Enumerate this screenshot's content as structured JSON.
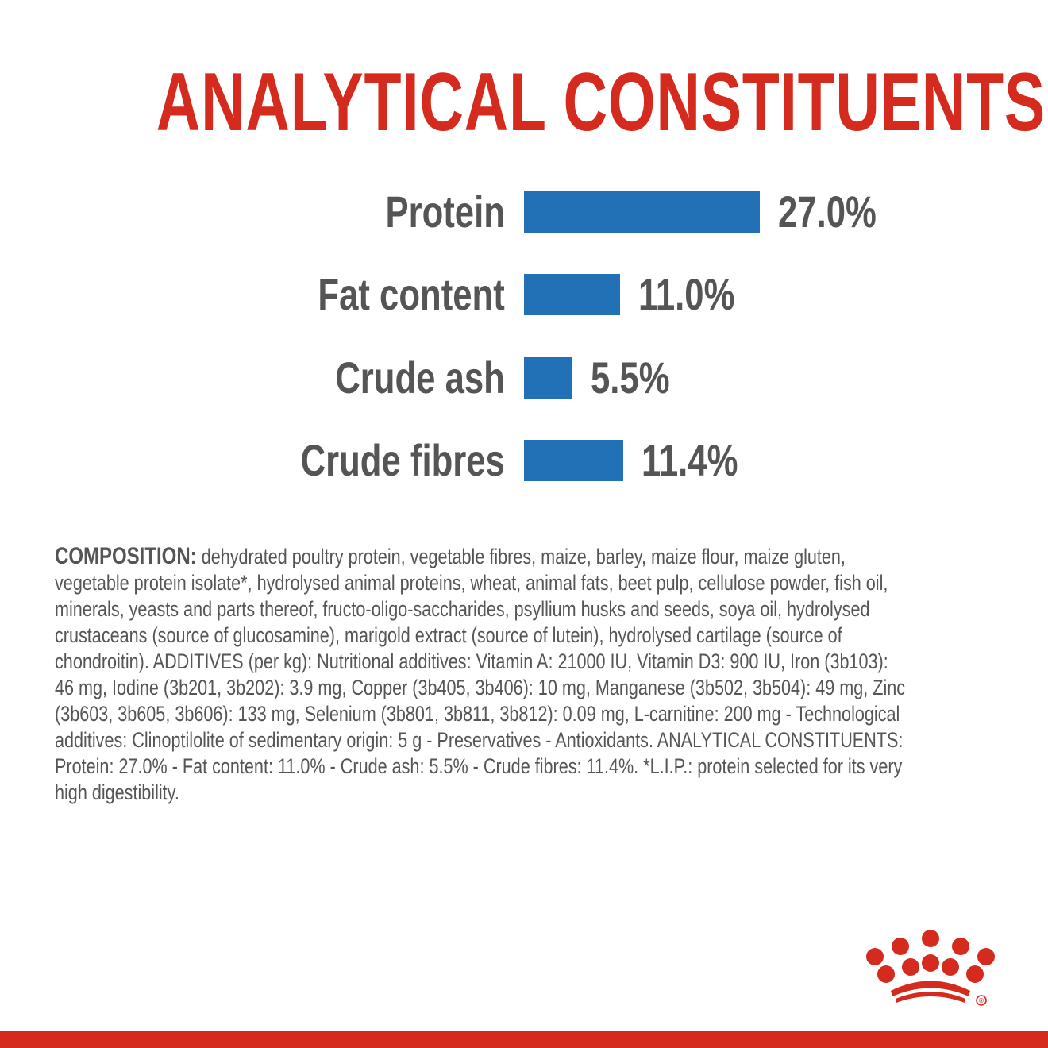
{
  "colors": {
    "brand_red": "#d52b1e",
    "bar_blue": "#2270b5",
    "text_gray": "#555555"
  },
  "chart_data": {
    "type": "bar",
    "orientation": "horizontal",
    "title": "ANALYTICAL CONSTITUENTS",
    "categories": [
      "Protein",
      "Fat content",
      "Crude ash",
      "Crude fibres"
    ],
    "values": [
      27.0,
      11.0,
      5.5,
      11.4
    ],
    "value_labels": [
      "27.0%",
      "11.0%",
      "5.5%",
      "11.4%"
    ],
    "unit": "%",
    "xlabel": "",
    "ylabel": "",
    "grid": false
  },
  "composition": {
    "heading": "COMPOSITION:",
    "lines": [
      "dehydrated poultry protein, vegetable fibres, maize, barley, maize flour, maize gluten,",
      "vegetable protein isolate*, hydrolysed animal proteins, wheat, animal fats, beet pulp, cellulose powder, fish oil,",
      "minerals, yeasts and parts thereof, fructo-oligo-saccharides, psyllium husks and seeds, soya oil, hydrolysed",
      "crustaceans (source of glucosamine), marigold extract (source of lutein), hydrolysed cartilage (source of",
      "chondroitin). ADDITIVES (per kg): Nutritional additives: Vitamin A: 21000 IU, Vitamin D3: 900 IU, Iron (3b103):",
      "46 mg, Iodine (3b201, 3b202): 3.9 mg, Copper (3b405, 3b406): 10 mg, Manganese (3b502, 3b504): 49 mg, Zinc",
      "(3b603, 3b605, 3b606): 133 mg, Selenium (3b801, 3b811, 3b812): 0.09 mg, L-carnitine: 200 mg - Technological",
      "additives: Clinoptilolite of sedimentary origin: 5 g - Preservatives - Antioxidants. ANALYTICAL CONSTITUENTS:",
      "Protein: 27.0% - Fat content: 11.0% - Crude ash: 5.5% - Crude fibres: 11.4%. *L.I.P.: protein selected for its very",
      "high digestibility."
    ]
  },
  "logo": {
    "name": "crown-logo",
    "registered_mark": "®"
  }
}
